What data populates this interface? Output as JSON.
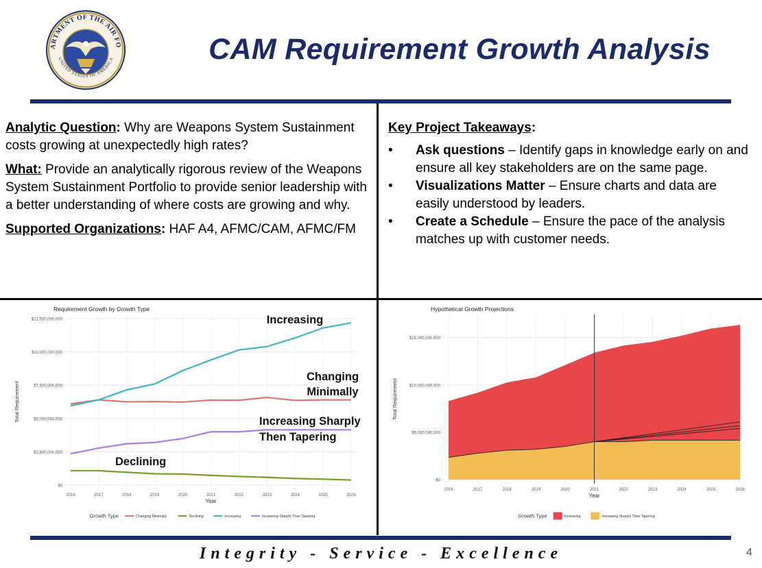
{
  "slide": {
    "title": "CAM Requirement Growth Analysis",
    "seal": {
      "top_text": "DEPARTMENT OF THE AIR FORCE",
      "bottom_text": "UNITED STATES OF AMERICA"
    },
    "footer": "Integrity - Service - Excellence",
    "page_number": "4",
    "colors": {
      "navy": "#1b2a6b"
    }
  },
  "left_text": {
    "analytic_label": "Analytic Question",
    "analytic_text": " Why are Weapons System Sustainment costs growing at unexpectedly high rates?",
    "what_label": "What:",
    "what_text": " Provide an analytically rigorous review of the Weapons System Sustainment Portfolio to provide senior leadership with a better understanding of where costs are growing and why.",
    "orgs_label": "Supported Organizations",
    "orgs_text": " HAF A4, AFMC/CAM, AFMC/FM"
  },
  "takeaways": {
    "heading": "Key Project Takeaways",
    "items": [
      {
        "bold": "Ask questions",
        "text": " – Identify gaps in knowledge early on and ensure all key stakeholders are on the same page."
      },
      {
        "bold": "Visualizations Matter",
        "text": " – Ensure charts and data are easily understood by leaders."
      },
      {
        "bold": "Create a Schedule",
        "text": " – Ensure the pace of the analysis matches up with customer needs."
      }
    ]
  },
  "chart_data": [
    {
      "type": "line",
      "title": "Requirement Growth by Growth Type",
      "xlabel": "Year",
      "ylabel": "Total Requirement",
      "x": [
        2016,
        2017,
        2018,
        2019,
        2020,
        2021,
        2022,
        2023,
        2024,
        2025,
        2026
      ],
      "ylim": [
        0,
        12500000000
      ],
      "yticks": [
        0,
        2500000000,
        5000000000,
        7500000000,
        10000000000,
        12500000000
      ],
      "ytick_labels": [
        "$0",
        "$2,500,000,000",
        "$5,000,000,000",
        "$7,500,000,000",
        "$10,000,000,000",
        "$12,500,000,000"
      ],
      "grid": true,
      "legend": {
        "title": "Growth Type",
        "placement": "bottom"
      },
      "series": [
        {
          "name": "Changing Minimally",
          "color": "#e07870",
          "values": [
            6100000000,
            6400000000,
            6250000000,
            6270000000,
            6230000000,
            6380000000,
            6370000000,
            6580000000,
            6360000000,
            6400000000,
            6400000000
          ]
        },
        {
          "name": "Declining",
          "color": "#7ba12a",
          "values": [
            1080000000,
            1080000000,
            960000000,
            850000000,
            830000000,
            730000000,
            650000000,
            580000000,
            500000000,
            440000000,
            380000000
          ]
        },
        {
          "name": "Increasing",
          "color": "#3fb8c4",
          "values": [
            5950000000,
            6400000000,
            7150000000,
            7600000000,
            8600000000,
            9400000000,
            10150000000,
            10400000000,
            11050000000,
            11800000000,
            12180000000
          ]
        },
        {
          "name": "Increasing Sharply Then Tapering",
          "color": "#b57ee6",
          "values": [
            2350000000,
            2780000000,
            3100000000,
            3200000000,
            3500000000,
            4000000000,
            4000000000,
            4150000000,
            4150000000,
            4150000000,
            4150000000
          ]
        }
      ],
      "annotations": [
        {
          "text": "Increasing",
          "series": "Increasing"
        },
        {
          "text": "Changing Minimally",
          "series": "Changing Minimally"
        },
        {
          "text": "Increasing Sharply Then Tapering",
          "series": "Increasing Sharply Then Tapering"
        },
        {
          "text": "Declining",
          "series": "Declining"
        }
      ]
    },
    {
      "type": "area",
      "title": "Hypothetical Growth Projections",
      "xlabel": "Year",
      "ylabel": "Total Requirement",
      "x": [
        2016,
        2017,
        2018,
        2019,
        2020,
        2021,
        2022,
        2023,
        2024,
        2025,
        2026
      ],
      "ylim": [
        0,
        17000000000
      ],
      "yticks": [
        0,
        5000000000,
        10000000000,
        15000000000
      ],
      "ytick_labels": [
        "$0",
        "$5,000,000,000",
        "$10,000,000,000",
        "$15,000,000,000"
      ],
      "grid": true,
      "stacked": true,
      "vline_x": 2021,
      "legend": {
        "title": "Growth Type",
        "placement": "bottom"
      },
      "series": [
        {
          "name": "Increasing",
          "color": "#e8474a",
          "values": [
            5950000000,
            6400000000,
            7150000000,
            7600000000,
            8600000000,
            9400000000,
            10150000000,
            10400000000,
            11050000000,
            11800000000,
            12180000000
          ]
        },
        {
          "name": "Increasing Sharply Then Tapering",
          "color": "#f2bd52",
          "values": [
            2350000000,
            2780000000,
            3100000000,
            3200000000,
            3500000000,
            4000000000,
            4000000000,
            4150000000,
            4150000000,
            4150000000,
            4150000000
          ]
        }
      ],
      "projections": [
        {
          "x": [
            2021,
            2026
          ],
          "values": [
            4000000000,
            6100000000
          ]
        },
        {
          "x": [
            2021,
            2026
          ],
          "values": [
            4000000000,
            5700000000
          ]
        },
        {
          "x": [
            2021,
            2026
          ],
          "values": [
            4000000000,
            5400000000
          ]
        }
      ]
    }
  ]
}
